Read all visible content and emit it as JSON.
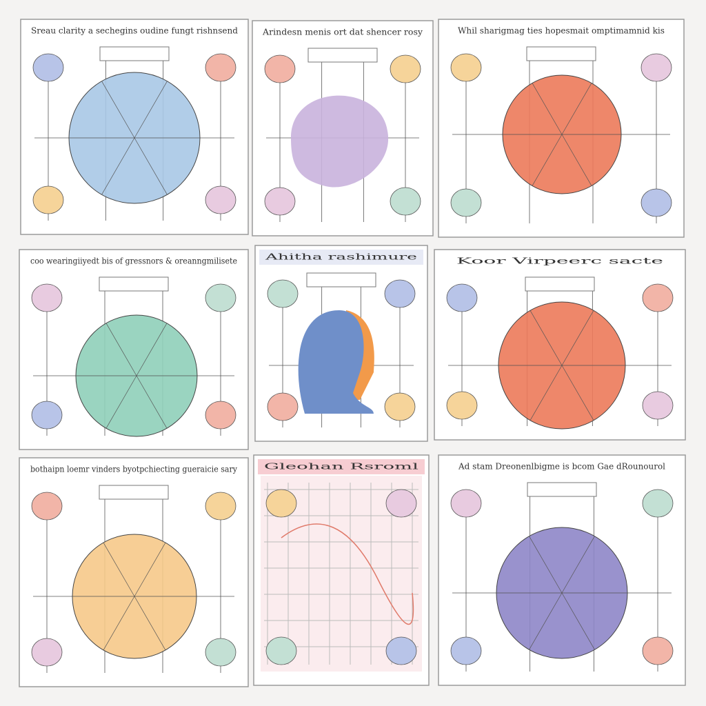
{
  "panels": [
    {
      "title": "Sreau clarity a sechegins oudine fungt rishnsend"
    },
    {
      "title": "Arindesn menis ort dat shencer rosy"
    },
    {
      "title": "Whil sharigmag ties hopesmait omptimamnid kis"
    },
    {
      "title": "coo wearingiiyedt bis of gressnors & oreanngmilisete"
    },
    {
      "title": "Ahitha rashimure"
    },
    {
      "title": "Koor Virpeerc sacte"
    },
    {
      "title": "bothaipn loemr vinders byotpchiecting gueraicie sary"
    },
    {
      "title": "Gleohan Rsroml"
    },
    {
      "title": "Ad stam Dreonenlbigme is bcom Gae dRounourol"
    }
  ]
}
